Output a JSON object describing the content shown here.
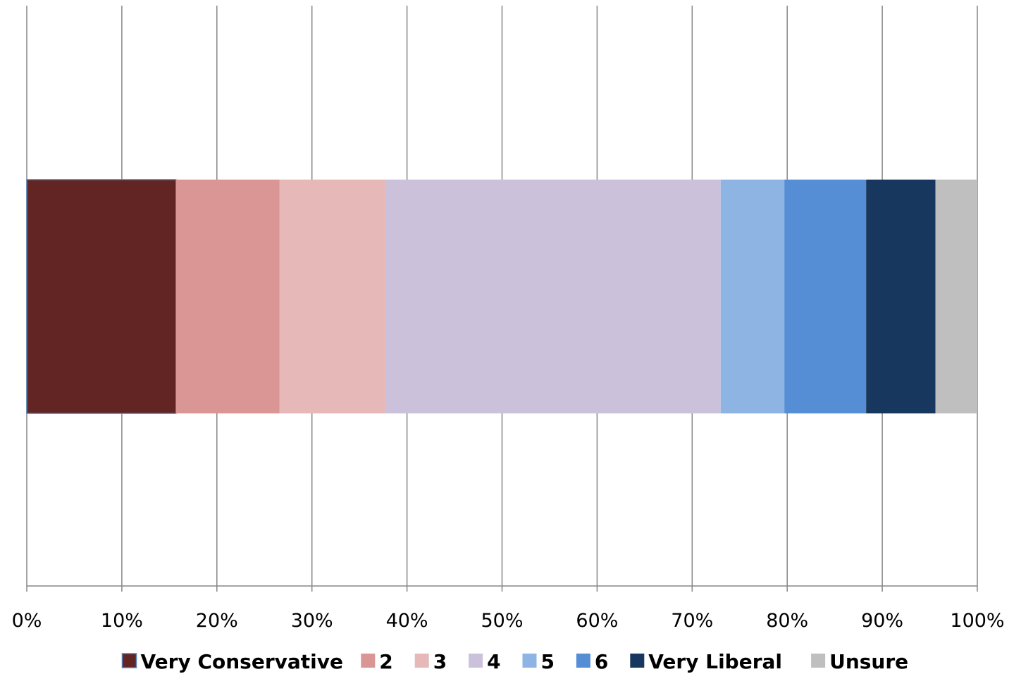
{
  "chart_data": {
    "type": "bar",
    "orientation": "horizontal",
    "stacked": "percent",
    "categories": [
      ""
    ],
    "series": [
      {
        "name": "Very Conservative",
        "values": [
          15.7
        ],
        "color": "#632523"
      },
      {
        "name": "2",
        "values": [
          10.9
        ],
        "color": "#d99694"
      },
      {
        "name": "3",
        "values": [
          11.2
        ],
        "color": "#e6b9b8"
      },
      {
        "name": "4",
        "values": [
          35.2
        ],
        "color": "#ccc1da"
      },
      {
        "name": "5",
        "values": [
          6.7
        ],
        "color": "#8eb4e3"
      },
      {
        "name": "6",
        "values": [
          8.6
        ],
        "color": "#558ed5"
      },
      {
        "name": "Very Liberal",
        "values": [
          7.3
        ],
        "color": "#17375e"
      },
      {
        "name": "Unsure",
        "values": [
          4.4
        ],
        "color": "#bfbfbf"
      }
    ],
    "xlim": [
      0,
      100
    ],
    "x_ticks": [
      "0%",
      "10%",
      "20%",
      "30%",
      "40%",
      "50%",
      "60%",
      "70%",
      "80%",
      "90%",
      "100%"
    ],
    "grid": "vertical",
    "legend_position": "bottom",
    "title": "",
    "xlabel": "",
    "ylabel": ""
  }
}
